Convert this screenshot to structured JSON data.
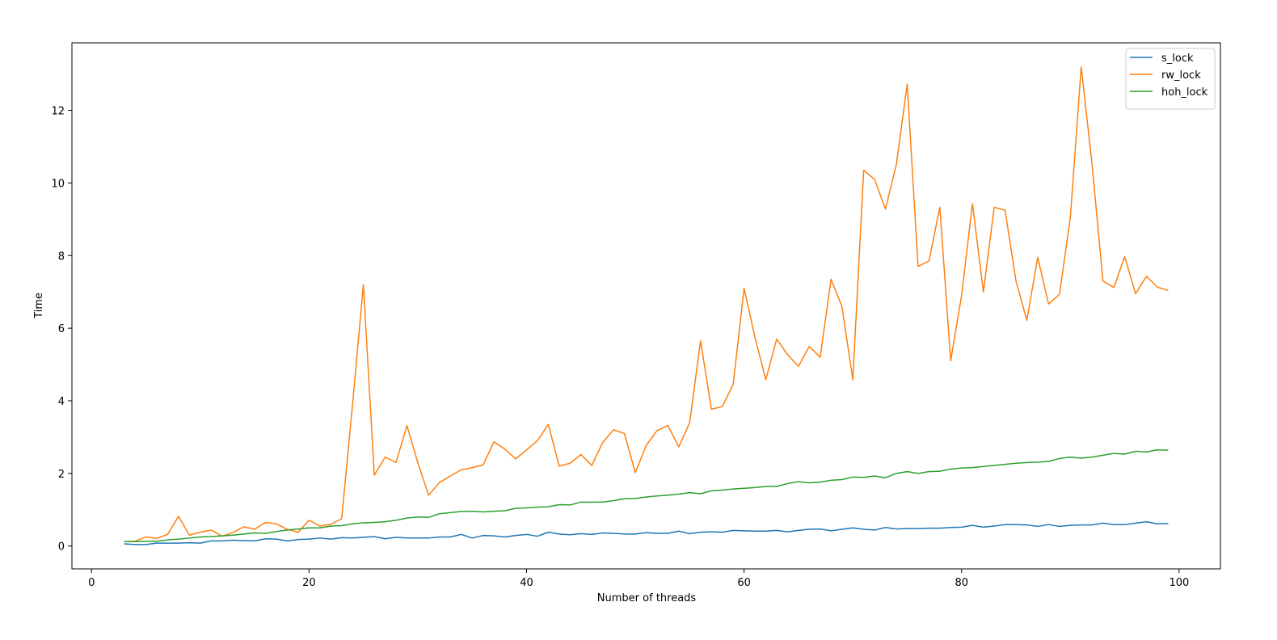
{
  "chart_data": {
    "type": "line",
    "xlabel": "Number of threads",
    "ylabel": "Time",
    "x": [
      3,
      4,
      5,
      6,
      7,
      8,
      9,
      10,
      11,
      12,
      13,
      14,
      15,
      16,
      17,
      18,
      19,
      20,
      21,
      22,
      23,
      24,
      25,
      26,
      27,
      28,
      29,
      30,
      31,
      32,
      33,
      34,
      35,
      36,
      37,
      38,
      39,
      40,
      41,
      42,
      43,
      44,
      45,
      46,
      47,
      48,
      49,
      50,
      51,
      52,
      53,
      54,
      55,
      56,
      57,
      58,
      59,
      60,
      61,
      62,
      63,
      64,
      65,
      66,
      67,
      68,
      69,
      70,
      71,
      72,
      73,
      74,
      75,
      76,
      77,
      78,
      79,
      80,
      81,
      82,
      83,
      84,
      85,
      86,
      87,
      88,
      89,
      90,
      91,
      92,
      93,
      94,
      95,
      96,
      97,
      98,
      99
    ],
    "series": [
      {
        "name": "s_lock",
        "color": "#1f77b4",
        "values": [
          0.06,
          0.04,
          0.04,
          0.08,
          0.08,
          0.08,
          0.09,
          0.08,
          0.14,
          0.14,
          0.16,
          0.15,
          0.14,
          0.2,
          0.19,
          0.14,
          0.18,
          0.19,
          0.22,
          0.19,
          0.23,
          0.22,
          0.24,
          0.26,
          0.2,
          0.24,
          0.22,
          0.22,
          0.22,
          0.25,
          0.25,
          0.32,
          0.22,
          0.29,
          0.28,
          0.25,
          0.29,
          0.32,
          0.27,
          0.38,
          0.33,
          0.31,
          0.34,
          0.32,
          0.36,
          0.35,
          0.33,
          0.33,
          0.37,
          0.35,
          0.35,
          0.41,
          0.34,
          0.38,
          0.39,
          0.38,
          0.43,
          0.42,
          0.41,
          0.41,
          0.43,
          0.39,
          0.43,
          0.46,
          0.47,
          0.42,
          0.46,
          0.5,
          0.46,
          0.44,
          0.51,
          0.47,
          0.48,
          0.48,
          0.49,
          0.49,
          0.51,
          0.52,
          0.57,
          0.52,
          0.55,
          0.59,
          0.59,
          0.58,
          0.54,
          0.59,
          0.54,
          0.57,
          0.58,
          0.58,
          0.63,
          0.59,
          0.59,
          0.63,
          0.67,
          0.61,
          0.62
        ]
      },
      {
        "name": "rw_lock",
        "color": "#ff7f0e",
        "values": [
          0.12,
          0.13,
          0.25,
          0.21,
          0.32,
          0.82,
          0.3,
          0.38,
          0.44,
          0.27,
          0.37,
          0.53,
          0.46,
          0.65,
          0.61,
          0.46,
          0.38,
          0.71,
          0.55,
          0.6,
          0.75,
          3.9,
          7.2,
          1.95,
          2.45,
          2.3,
          3.32,
          2.3,
          1.4,
          1.75,
          1.93,
          2.1,
          2.16,
          2.23,
          2.87,
          2.67,
          2.4,
          2.65,
          2.9,
          3.35,
          2.2,
          2.28,
          2.52,
          2.22,
          2.85,
          3.2,
          3.1,
          2.02,
          2.77,
          3.18,
          3.32,
          2.73,
          3.4,
          5.65,
          3.77,
          3.84,
          4.45,
          7.1,
          5.75,
          4.58,
          5.7,
          5.27,
          4.95,
          5.5,
          5.2,
          7.35,
          6.6,
          4.58,
          10.35,
          10.1,
          9.28,
          10.5,
          12.72,
          7.7,
          7.85,
          9.33,
          5.1,
          6.9,
          9.43,
          7.0,
          9.33,
          9.25,
          7.3,
          6.22,
          7.95,
          6.67,
          6.93,
          9.05,
          13.2,
          10.5,
          7.3,
          7.12,
          7.97,
          6.95,
          7.43,
          7.13,
          7.04
        ]
      },
      {
        "name": "hoh_lock",
        "color": "#2ca02c",
        "values": [
          0.12,
          0.12,
          0.13,
          0.13,
          0.17,
          0.19,
          0.22,
          0.25,
          0.26,
          0.28,
          0.3,
          0.33,
          0.36,
          0.35,
          0.4,
          0.44,
          0.47,
          0.5,
          0.5,
          0.55,
          0.56,
          0.61,
          0.64,
          0.65,
          0.67,
          0.71,
          0.77,
          0.8,
          0.79,
          0.89,
          0.92,
          0.95,
          0.96,
          0.94,
          0.96,
          0.97,
          1.04,
          1.05,
          1.07,
          1.08,
          1.14,
          1.13,
          1.21,
          1.21,
          1.21,
          1.25,
          1.3,
          1.31,
          1.35,
          1.38,
          1.4,
          1.43,
          1.47,
          1.44,
          1.52,
          1.54,
          1.57,
          1.59,
          1.61,
          1.64,
          1.64,
          1.72,
          1.77,
          1.74,
          1.76,
          1.81,
          1.83,
          1.9,
          1.89,
          1.93,
          1.88,
          2.0,
          2.05,
          2.0,
          2.05,
          2.06,
          2.12,
          2.15,
          2.16,
          2.19,
          2.22,
          2.25,
          2.28,
          2.3,
          2.31,
          2.33,
          2.41,
          2.45,
          2.42,
          2.45,
          2.5,
          2.55,
          2.53,
          2.61,
          2.59,
          2.65,
          2.64
        ]
      }
    ],
    "xlim": [
      -1.8,
      103.8
    ],
    "xticks": [
      0,
      20,
      40,
      60,
      80,
      100
    ],
    "ylim": [
      -0.63,
      13.86
    ],
    "yticks": [
      0,
      2,
      4,
      6,
      8,
      10,
      12
    ],
    "legend": "upper right"
  }
}
